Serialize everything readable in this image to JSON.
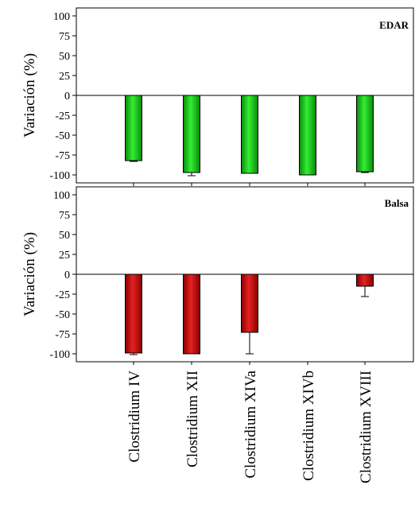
{
  "chart_data": [
    {
      "type": "bar",
      "panel_label": "EDAR",
      "ylabel": "Variación (%)",
      "ylim": [
        -110,
        110
      ],
      "yticks": [
        100,
        75,
        50,
        25,
        0,
        -25,
        -50,
        -75,
        -100
      ],
      "categories": [
        "Clostridium IV",
        "Clostridium XII",
        "Clostridium XIVa",
        "Clostridium XIVb",
        "Clostridium XVIII"
      ],
      "values": [
        -82,
        -97,
        -98,
        -100,
        -96
      ],
      "errors": [
        1,
        4,
        0,
        0,
        1
      ],
      "color": "#22cc22",
      "grid": false
    },
    {
      "type": "bar",
      "panel_label": "Balsa",
      "ylabel": "Variación (%)",
      "ylim": [
        -110,
        110
      ],
      "yticks": [
        100,
        75,
        50,
        25,
        0,
        -25,
        -50,
        -75,
        -100
      ],
      "categories": [
        "Clostridium IV",
        "Clostridium XII",
        "Clostridium XIVa",
        "Clostridium XIVb",
        "Clostridium XVIII"
      ],
      "values": [
        -99,
        -100,
        -73,
        null,
        -15
      ],
      "errors": [
        2,
        0,
        27,
        null,
        13
      ],
      "color": "#cc1111",
      "grid": false
    }
  ]
}
